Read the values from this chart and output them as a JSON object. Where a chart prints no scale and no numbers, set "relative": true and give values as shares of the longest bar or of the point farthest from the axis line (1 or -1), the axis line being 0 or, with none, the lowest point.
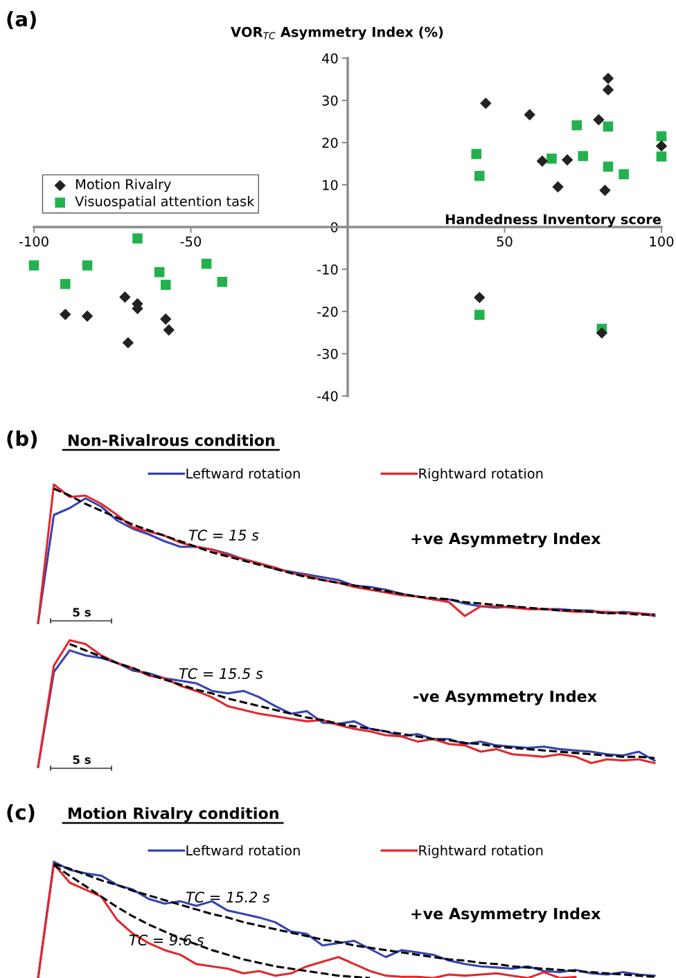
{
  "chart_data": [
    {
      "type": "scatter",
      "xlabel": "Handedness Inventory score",
      "ylabel": "VOR$_{TC}$ Asymmetry Index (%)",
      "annotations": [
        "(a)"
      ],
      "xlim": [
        -100,
        100
      ],
      "xticks": [
        -100,
        -50,
        50,
        100
      ],
      "ylim": [
        -40,
        40
      ],
      "yticks": [
        -40,
        -30,
        -20,
        -10,
        0,
        10,
        20,
        30,
        40
      ],
      "grid": false,
      "legend": "left",
      "series": [
        {
          "name": "Motion Rivalry",
          "color": "#222222",
          "marker": "diamond",
          "x": [
            83,
            83,
            44,
            58,
            80,
            100,
            62,
            70,
            67,
            82,
            42,
            81,
            -71,
            -67,
            -67,
            -90,
            -83,
            -58,
            -57,
            -70
          ],
          "values": [
            35.2,
            32.5,
            29.3,
            26.6,
            25.4,
            19.2,
            15.6,
            15.9,
            9.5,
            8.7,
            -16.7,
            -25.1,
            -16.6,
            -18.2,
            -19.3,
            -20.7,
            -21.1,
            -21.8,
            -24.4,
            -27.4
          ]
        },
        {
          "name": "Visuospatial attention task",
          "color": "#22b14c",
          "marker": "square",
          "x": [
            -100,
            -83,
            -90,
            -67,
            -60,
            -58,
            -45,
            -40,
            41,
            42,
            65,
            73,
            83,
            75,
            83,
            88,
            100,
            100,
            42,
            81
          ],
          "values": [
            -9.1,
            -9.1,
            -13.5,
            -2.7,
            -10.7,
            -13.7,
            -8.7,
            -13,
            17.3,
            12.1,
            16.2,
            24.1,
            23.8,
            16.8,
            14.3,
            12.5,
            21.5,
            16.7,
            -20.8,
            -24.1
          ]
        }
      ]
    },
    {
      "type": "line",
      "relative": true,
      "title": "Non-Rivalrous condition",
      "annotations": [
        "(b)",
        "TC = 15 s",
        "+ve Asymmetry Index",
        "5 s"
      ],
      "legend": "top",
      "categories": [
        null,
        null,
        null,
        null,
        null,
        null,
        null,
        null,
        null,
        null,
        null,
        null,
        null,
        null,
        null,
        null,
        null,
        null,
        null,
        null,
        null,
        null,
        null,
        null,
        null,
        null,
        null,
        null,
        null,
        null,
        null,
        null,
        null,
        null,
        null,
        null,
        null,
        null,
        null,
        null
      ],
      "series": [
        {
          "name": "Leftward rotation",
          "color": "#3443b0",
          "values": [
            0,
            0.78,
            0.83,
            0.9,
            0.84,
            0.74,
            0.68,
            0.64,
            0.59,
            0.55,
            0.55,
            0.53,
            0.5,
            0.46,
            0.43,
            0.39,
            0.37,
            0.35,
            0.33,
            0.31,
            0.27,
            0.26,
            0.24,
            0.21,
            0.19,
            0.17,
            0.17,
            0.14,
            0.12,
            0.11,
            0.12,
            0.1,
            0.1,
            0.1,
            0.09,
            0.09,
            0.07,
            0.08,
            0.07,
            0.05
          ]
        },
        {
          "name": "Rightward rotation",
          "color": "#e5262b",
          "values": [
            0,
            1.0,
            0.91,
            0.92,
            0.86,
            0.78,
            0.69,
            0.66,
            0.63,
            0.58,
            0.55,
            0.53,
            0.49,
            0.46,
            0.43,
            0.4,
            0.36,
            0.34,
            0.31,
            0.29,
            0.26,
            0.24,
            0.22,
            0.2,
            0.19,
            0.17,
            0.15,
            0.05,
            0.12,
            0.12,
            0.11,
            0.1,
            0.1,
            0.09,
            0.08,
            0.08,
            0.08,
            0.07,
            0.07,
            0.06
          ]
        },
        {
          "color": "#000000",
          "line_style": "dashed",
          "values": [
            null,
            0.97,
            0.92,
            0.86,
            0.81,
            0.76,
            0.71,
            0.67,
            0.63,
            0.59,
            0.55,
            0.51,
            0.48,
            0.45,
            0.42,
            0.39,
            0.36,
            0.33,
            0.31,
            0.29,
            0.27,
            0.25,
            0.23,
            0.21,
            0.19,
            0.18,
            0.17,
            0.15,
            0.14,
            0.13,
            0.12,
            0.11,
            0.1,
            0.09,
            0.09,
            0.08,
            0.07,
            0.07,
            0.06,
            0.06
          ]
        }
      ]
    },
    {
      "type": "line",
      "relative": true,
      "annotations": [
        "TC = 15.5 s",
        "-ve Asymmetry Index",
        "5 s"
      ],
      "categories": [
        null,
        null,
        null,
        null,
        null,
        null,
        null,
        null,
        null,
        null,
        null,
        null,
        null,
        null,
        null,
        null,
        null,
        null,
        null,
        null,
        null,
        null,
        null,
        null,
        null,
        null,
        null,
        null,
        null,
        null,
        null,
        null,
        null,
        null,
        null,
        null,
        null,
        null,
        null,
        null
      ],
      "series": [
        {
          "color": "#3443b0",
          "values": [
            0,
            0.75,
            0.92,
            0.88,
            0.86,
            0.82,
            0.76,
            0.74,
            0.7,
            0.68,
            0.66,
            0.6,
            0.58,
            0.6,
            0.55,
            0.48,
            0.42,
            0.44,
            0.35,
            0.34,
            0.36,
            0.3,
            0.28,
            0.24,
            0.26,
            0.22,
            0.22,
            0.18,
            0.2,
            0.17,
            0.16,
            0.15,
            0.16,
            0.14,
            0.13,
            0.12,
            0.1,
            0.09,
            0.12,
            0.05
          ]
        },
        {
          "color": "#e5262b",
          "values": [
            0,
            0.8,
            1.0,
            0.97,
            0.88,
            0.82,
            0.78,
            0.72,
            0.7,
            0.64,
            0.6,
            0.55,
            0.48,
            0.45,
            0.42,
            0.4,
            0.38,
            0.36,
            0.37,
            0.33,
            0.3,
            0.28,
            0.25,
            0.24,
            0.2,
            0.22,
            0.18,
            0.17,
            0.12,
            0.14,
            0.1,
            0.09,
            0.08,
            0.1,
            0.08,
            0.03,
            0.06,
            0.05,
            0.06,
            0.03
          ]
        },
        {
          "color": "#000000",
          "line_style": "dashed",
          "values": [
            null,
            null,
            0.97,
            0.92,
            0.87,
            0.82,
            0.78,
            0.73,
            0.69,
            0.65,
            0.61,
            0.58,
            0.54,
            0.51,
            0.48,
            0.45,
            0.42,
            0.39,
            0.37,
            0.34,
            0.32,
            0.3,
            0.28,
            0.26,
            0.24,
            0.22,
            0.21,
            0.19,
            0.18,
            0.16,
            0.15,
            0.14,
            0.13,
            0.12,
            0.11,
            0.1,
            0.09,
            0.08,
            0.08,
            0.07
          ]
        }
      ]
    },
    {
      "type": "line",
      "relative": true,
      "title": "Motion Rivalry condition",
      "annotations": [
        "(c)",
        "TC = 15.2 s",
        "TC = 9.6 s",
        "+ve Asymmetry Index"
      ],
      "legend": "top",
      "categories": [
        null,
        null,
        null,
        null,
        null,
        null,
        null,
        null,
        null,
        null,
        null,
        null,
        null,
        null,
        null,
        null,
        null,
        null,
        null,
        null,
        null,
        null,
        null,
        null,
        null,
        null,
        null,
        null,
        null,
        null,
        null,
        null,
        null,
        null,
        null,
        null,
        null,
        null,
        null,
        null
      ],
      "series": [
        {
          "name": "Leftward rotation",
          "color": "#3443b0",
          "values": [
            0,
            1.0,
            0.93,
            0.9,
            0.88,
            0.8,
            0.76,
            0.68,
            0.64,
            0.66,
            0.62,
            0.66,
            0.58,
            0.55,
            0.52,
            0.48,
            0.4,
            0.38,
            0.28,
            0.3,
            0.32,
            0.25,
            0.18,
            0.24,
            0.22,
            0.2,
            0.15,
            0.12,
            0.1,
            0.09,
            0.08,
            0.1,
            0.06,
            0.05,
            0.07,
            0.04,
            0.03,
            0.05,
            0.03,
            0.02
          ]
        },
        {
          "name": "Rightward rotation",
          "color": "#e5262b",
          "values": [
            0,
            0.98,
            0.82,
            0.76,
            0.7,
            0.5,
            0.38,
            0.3,
            0.24,
            0.2,
            0.12,
            0.1,
            0.08,
            0.04,
            0.06,
            0.02,
            0.04,
            0.1,
            0.14,
            0.18,
            0.12,
            0.06,
            0.02,
            0.01,
            0.01,
            0.0,
            0.03,
            0.02,
            0.03,
            0.04,
            0.02,
            0.0,
            0.05,
            0.0,
            0.01,
            null,
            null,
            null,
            null,
            null
          ]
        },
        {
          "color": "#000000",
          "line_style": "dashed",
          "values": [
            null,
            0.98,
            0.94,
            0.89,
            0.84,
            0.8,
            0.75,
            0.71,
            0.67,
            0.63,
            0.59,
            0.55,
            0.52,
            0.48,
            0.45,
            0.42,
            0.39,
            0.36,
            0.33,
            0.31,
            0.28,
            0.26,
            0.24,
            0.22,
            0.2,
            0.18,
            0.16,
            0.15,
            0.13,
            0.12,
            0.1,
            0.09,
            0.08,
            0.07,
            0.06,
            0.05,
            0.04,
            0.03,
            0.02,
            0.01
          ]
        },
        {
          "color": "#000000",
          "line_style": "dashed",
          "values": [
            null,
            0.97,
            0.88,
            0.79,
            0.7,
            0.61,
            0.53,
            0.46,
            0.4,
            0.34,
            0.29,
            0.24,
            0.2,
            0.16,
            0.13,
            0.1,
            0.08,
            0.06,
            0.04,
            0.02,
            0.01,
            0.0,
            null,
            null,
            null,
            null,
            null,
            null,
            null,
            null,
            null,
            null,
            null,
            null,
            null,
            null,
            null,
            null,
            null,
            null
          ]
        }
      ]
    }
  ]
}
